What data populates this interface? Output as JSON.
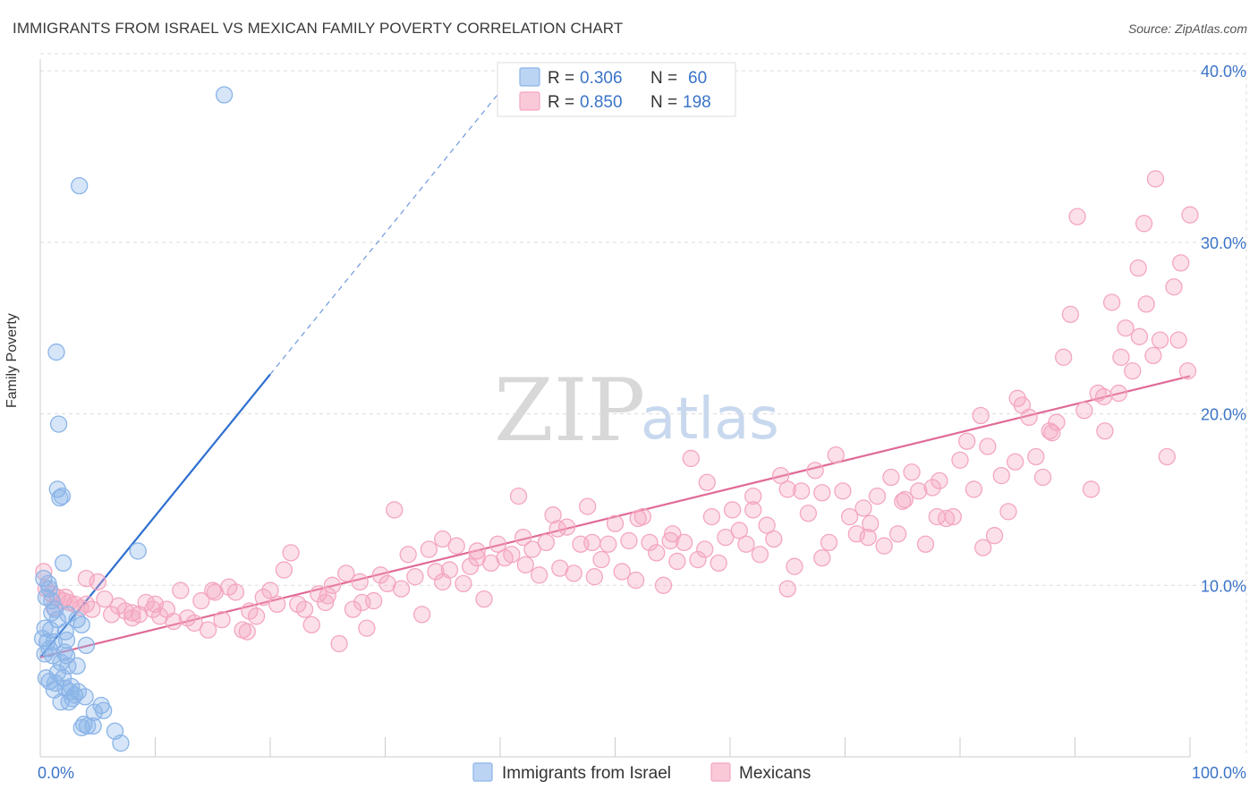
{
  "chart_data": {
    "type": "scatter",
    "title": "IMMIGRANTS FROM ISRAEL VS MEXICAN FAMILY POVERTY CORRELATION CHART",
    "source": "Source: ZipAtlas.com",
    "xlabel": "",
    "ylabel": "Family Poverty",
    "xlim": [
      0,
      100
    ],
    "ylim": [
      0,
      41
    ],
    "x_tick_labels": [
      "0.0%",
      "100.0%"
    ],
    "y_ticks": [
      10,
      20,
      30,
      40
    ],
    "y_tick_labels": [
      "10.0%",
      "20.0%",
      "30.0%",
      "40.0%"
    ],
    "grid": true,
    "watermark": {
      "zip": "ZIP",
      "atlas": "atlas"
    },
    "legend": {
      "placement": "top-center",
      "rows": [
        {
          "r_label": "R = ",
          "r_value": "0.306",
          "n_label": "N = ",
          "n_value": "60"
        },
        {
          "r_label": "R = ",
          "r_value": "0.850",
          "n_label": "N = ",
          "n_value": "198"
        }
      ]
    },
    "series": [
      {
        "name": "Immigrants from Israel",
        "color": "#8ab4e8",
        "line_color": "#2e6fd0",
        "trend": {
          "x0": 0.0,
          "y0": 5.8,
          "x1": 20.0,
          "y1": 22.3,
          "dash_to_x": 41.0
        },
        "points": [
          [
            16.0,
            38.6
          ],
          [
            3.4,
            33.3
          ],
          [
            1.4,
            23.6
          ],
          [
            1.6,
            19.4
          ],
          [
            1.5,
            15.6
          ],
          [
            1.9,
            15.2
          ],
          [
            1.7,
            15.1
          ],
          [
            2.0,
            11.3
          ],
          [
            8.5,
            12.0
          ],
          [
            0.3,
            10.4
          ],
          [
            0.7,
            10.1
          ],
          [
            0.8,
            9.8
          ],
          [
            0.5,
            9.3
          ],
          [
            1.0,
            9.1
          ],
          [
            1.3,
            8.6
          ],
          [
            2.4,
            8.3
          ],
          [
            1.5,
            8.0
          ],
          [
            3.2,
            8.0
          ],
          [
            3.6,
            7.7
          ],
          [
            0.4,
            7.5
          ],
          [
            0.9,
            7.4
          ],
          [
            2.2,
            7.3
          ],
          [
            0.2,
            6.9
          ],
          [
            0.6,
            6.7
          ],
          [
            1.2,
            6.7
          ],
          [
            2.3,
            6.8
          ],
          [
            4.0,
            6.5
          ],
          [
            0.8,
            6.3
          ],
          [
            2.1,
            6.1
          ],
          [
            1.1,
            5.9
          ],
          [
            2.3,
            5.9
          ],
          [
            1.8,
            5.5
          ],
          [
            2.4,
            5.3
          ],
          [
            3.2,
            5.3
          ],
          [
            1.5,
            4.9
          ],
          [
            0.5,
            4.6
          ],
          [
            2.0,
            4.6
          ],
          [
            0.8,
            4.4
          ],
          [
            1.3,
            4.3
          ],
          [
            2.2,
            4.0
          ],
          [
            1.2,
            3.9
          ],
          [
            2.6,
            3.8
          ],
          [
            3.3,
            3.8
          ],
          [
            3.0,
            3.6
          ],
          [
            2.8,
            3.4
          ],
          [
            1.8,
            3.2
          ],
          [
            2.5,
            3.2
          ],
          [
            5.3,
            3.0
          ],
          [
            5.5,
            2.7
          ],
          [
            4.7,
            2.6
          ],
          [
            3.8,
            1.9
          ],
          [
            4.1,
            1.8
          ],
          [
            3.6,
            1.7
          ],
          [
            4.6,
            1.8
          ],
          [
            6.5,
            1.5
          ],
          [
            7.0,
            0.8
          ],
          [
            1.0,
            8.4
          ],
          [
            0.4,
            6.0
          ],
          [
            2.7,
            4.1
          ],
          [
            3.9,
            3.5
          ]
        ]
      },
      {
        "name": "Mexicans",
        "color": "#f4a6c0",
        "line_color": "#e06a97",
        "trend": {
          "x0": 0.0,
          "y0": 5.8,
          "x1": 100.0,
          "y1": 22.2
        },
        "points": [
          [
            0.3,
            10.8
          ],
          [
            0.5,
            9.8
          ],
          [
            1.0,
            9.5
          ],
          [
            1.5,
            9.3
          ],
          [
            2.0,
            9.1
          ],
          [
            2.5,
            9.0
          ],
          [
            3.0,
            8.9
          ],
          [
            3.5,
            8.7
          ],
          [
            4.0,
            10.4
          ],
          [
            4.5,
            8.6
          ],
          [
            5.0,
            10.2
          ],
          [
            5.6,
            9.2
          ],
          [
            6.2,
            8.3
          ],
          [
            6.8,
            8.8
          ],
          [
            7.4,
            8.5
          ],
          [
            8.0,
            8.1
          ],
          [
            8.6,
            8.3
          ],
          [
            9.2,
            9.0
          ],
          [
            9.8,
            8.6
          ],
          [
            10.4,
            8.2
          ],
          [
            11.0,
            8.6
          ],
          [
            11.6,
            7.9
          ],
          [
            12.2,
            9.7
          ],
          [
            12.8,
            8.1
          ],
          [
            13.4,
            7.8
          ],
          [
            14.0,
            9.1
          ],
          [
            14.6,
            7.4
          ],
          [
            15.2,
            9.6
          ],
          [
            15.8,
            8.0
          ],
          [
            16.4,
            9.9
          ],
          [
            17.0,
            9.6
          ],
          [
            17.6,
            7.4
          ],
          [
            18.2,
            8.5
          ],
          [
            18.8,
            8.2
          ],
          [
            19.4,
            9.3
          ],
          [
            20.0,
            9.7
          ],
          [
            20.6,
            8.9
          ],
          [
            21.2,
            10.9
          ],
          [
            21.8,
            11.9
          ],
          [
            22.4,
            8.9
          ],
          [
            23.0,
            8.6
          ],
          [
            23.6,
            7.7
          ],
          [
            24.2,
            9.5
          ],
          [
            24.8,
            9.0
          ],
          [
            25.4,
            10.0
          ],
          [
            26.0,
            6.6
          ],
          [
            26.6,
            10.7
          ],
          [
            27.2,
            8.6
          ],
          [
            27.8,
            10.2
          ],
          [
            28.4,
            7.5
          ],
          [
            29.0,
            9.1
          ],
          [
            29.6,
            10.6
          ],
          [
            30.2,
            10.1
          ],
          [
            30.8,
            14.4
          ],
          [
            31.4,
            9.8
          ],
          [
            32.0,
            11.8
          ],
          [
            32.6,
            10.5
          ],
          [
            33.2,
            8.3
          ],
          [
            33.8,
            12.1
          ],
          [
            34.4,
            10.8
          ],
          [
            35.0,
            12.7
          ],
          [
            35.6,
            10.9
          ],
          [
            36.2,
            12.3
          ],
          [
            36.8,
            10.1
          ],
          [
            37.4,
            11.1
          ],
          [
            38.0,
            12.0
          ],
          [
            38.6,
            9.2
          ],
          [
            39.2,
            11.3
          ],
          [
            39.8,
            12.4
          ],
          [
            40.4,
            11.6
          ],
          [
            41.0,
            11.8
          ],
          [
            41.6,
            15.2
          ],
          [
            42.2,
            11.2
          ],
          [
            42.8,
            12.1
          ],
          [
            43.4,
            10.6
          ],
          [
            44.0,
            12.5
          ],
          [
            44.6,
            14.1
          ],
          [
            45.2,
            11.0
          ],
          [
            45.8,
            13.4
          ],
          [
            46.4,
            10.7
          ],
          [
            47.0,
            12.4
          ],
          [
            47.6,
            14.6
          ],
          [
            48.2,
            10.5
          ],
          [
            48.8,
            11.5
          ],
          [
            49.4,
            12.4
          ],
          [
            50.0,
            13.6
          ],
          [
            50.6,
            10.8
          ],
          [
            51.2,
            12.6
          ],
          [
            51.8,
            10.3
          ],
          [
            52.4,
            14.0
          ],
          [
            53.0,
            12.5
          ],
          [
            53.6,
            11.9
          ],
          [
            54.2,
            10.0
          ],
          [
            54.8,
            12.6
          ],
          [
            55.4,
            11.4
          ],
          [
            56.0,
            12.5
          ],
          [
            56.6,
            17.4
          ],
          [
            57.2,
            11.5
          ],
          [
            57.8,
            12.1
          ],
          [
            58.4,
            14.0
          ],
          [
            59.0,
            11.3
          ],
          [
            59.6,
            12.8
          ],
          [
            60.2,
            14.4
          ],
          [
            60.8,
            13.2
          ],
          [
            61.4,
            12.4
          ],
          [
            62.0,
            14.4
          ],
          [
            62.6,
            11.8
          ],
          [
            63.2,
            13.5
          ],
          [
            63.8,
            12.7
          ],
          [
            64.4,
            16.4
          ],
          [
            65.0,
            15.6
          ],
          [
            65.6,
            11.1
          ],
          [
            66.2,
            15.5
          ],
          [
            66.8,
            14.2
          ],
          [
            67.4,
            16.7
          ],
          [
            68.0,
            11.6
          ],
          [
            68.6,
            12.5
          ],
          [
            69.2,
            17.6
          ],
          [
            69.8,
            15.5
          ],
          [
            70.4,
            14.0
          ],
          [
            71.0,
            13.0
          ],
          [
            71.6,
            14.5
          ],
          [
            72.2,
            13.6
          ],
          [
            72.8,
            15.2
          ],
          [
            73.4,
            12.3
          ],
          [
            74.0,
            16.3
          ],
          [
            74.6,
            13.0
          ],
          [
            75.2,
            15.0
          ],
          [
            75.8,
            16.6
          ],
          [
            76.4,
            15.5
          ],
          [
            77.0,
            12.4
          ],
          [
            77.6,
            15.7
          ],
          [
            78.2,
            16.1
          ],
          [
            78.8,
            13.9
          ],
          [
            79.4,
            14.0
          ],
          [
            80.0,
            17.3
          ],
          [
            80.6,
            18.4
          ],
          [
            81.2,
            15.6
          ],
          [
            81.8,
            19.9
          ],
          [
            82.4,
            18.1
          ],
          [
            83.0,
            12.9
          ],
          [
            83.6,
            16.4
          ],
          [
            84.2,
            14.3
          ],
          [
            84.8,
            17.2
          ],
          [
            85.4,
            20.5
          ],
          [
            86.0,
            19.8
          ],
          [
            86.6,
            17.5
          ],
          [
            87.2,
            16.3
          ],
          [
            87.8,
            19.0
          ],
          [
            88.4,
            19.5
          ],
          [
            89.0,
            23.3
          ],
          [
            89.6,
            25.8
          ],
          [
            90.2,
            31.5
          ],
          [
            90.8,
            20.2
          ],
          [
            91.4,
            15.6
          ],
          [
            92.0,
            21.2
          ],
          [
            92.6,
            19.0
          ],
          [
            93.2,
            26.5
          ],
          [
            93.8,
            21.2
          ],
          [
            94.4,
            25.0
          ],
          [
            95.0,
            22.5
          ],
          [
            95.6,
            24.5
          ],
          [
            96.2,
            26.4
          ],
          [
            96.8,
            23.4
          ],
          [
            97.4,
            24.3
          ],
          [
            98.0,
            17.5
          ],
          [
            98.6,
            27.4
          ],
          [
            99.2,
            28.8
          ],
          [
            99.8,
            22.5
          ],
          [
            100.0,
            31.6
          ],
          [
            97.0,
            33.7
          ],
          [
            96.0,
            31.1
          ],
          [
            95.5,
            28.5
          ],
          [
            94.0,
            23.3
          ],
          [
            99.0,
            24.3
          ],
          [
            10.0,
            8.9
          ],
          [
            15.0,
            9.7
          ],
          [
            25.0,
            9.4
          ],
          [
            35.0,
            10.2
          ],
          [
            45.0,
            13.3
          ],
          [
            55.0,
            13.0
          ],
          [
            65.0,
            9.8
          ],
          [
            75.0,
            14.9
          ],
          [
            85.0,
            20.9
          ],
          [
            92.5,
            21.0
          ],
          [
            88.0,
            18.9
          ],
          [
            82.0,
            12.2
          ],
          [
            78.0,
            14.0
          ],
          [
            72.0,
            12.8
          ],
          [
            68.0,
            15.4
          ],
          [
            62.0,
            15.2
          ],
          [
            58.0,
            16.0
          ],
          [
            52.0,
            13.9
          ],
          [
            48.0,
            12.5
          ],
          [
            42.0,
            12.8
          ],
          [
            38.0,
            11.6
          ],
          [
            28.0,
            9.0
          ],
          [
            18.0,
            7.3
          ],
          [
            8.0,
            8.4
          ],
          [
            4.0,
            8.9
          ],
          [
            2.2,
            9.3
          ],
          [
            1.2,
            8.7
          ]
        ]
      }
    ]
  }
}
